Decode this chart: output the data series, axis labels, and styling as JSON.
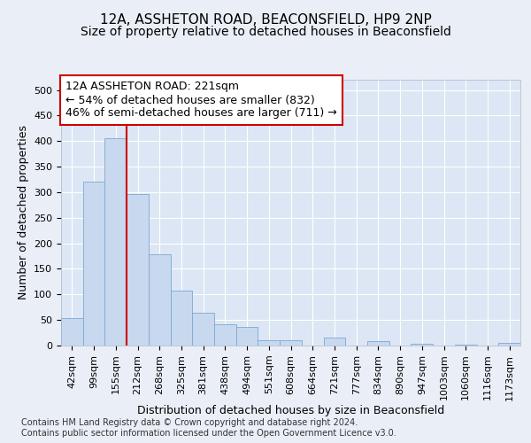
{
  "title1": "12A, ASSHETON ROAD, BEACONSFIELD, HP9 2NP",
  "title2": "Size of property relative to detached houses in Beaconsfield",
  "xlabel": "Distribution of detached houses by size in Beaconsfield",
  "ylabel": "Number of detached properties",
  "categories": [
    "42sqm",
    "99sqm",
    "155sqm",
    "212sqm",
    "268sqm",
    "325sqm",
    "381sqm",
    "438sqm",
    "494sqm",
    "551sqm",
    "608sqm",
    "664sqm",
    "721sqm",
    "777sqm",
    "834sqm",
    "890sqm",
    "947sqm",
    "1003sqm",
    "1060sqm",
    "1116sqm",
    "1173sqm"
  ],
  "values": [
    54,
    320,
    405,
    297,
    178,
    107,
    65,
    41,
    37,
    11,
    11,
    0,
    15,
    0,
    8,
    0,
    4,
    0,
    1,
    0,
    5
  ],
  "bar_color": "#c8d8ee",
  "bar_edge_color": "#7aaad0",
  "vline_idx": 3,
  "vline_color": "#cc0000",
  "annotation_text": "12A ASSHETON ROAD: 221sqm\n← 54% of detached houses are smaller (832)\n46% of semi-detached houses are larger (711) →",
  "annotation_box_color": "#ffffff",
  "annotation_box_edge": "#cc0000",
  "footer": "Contains HM Land Registry data © Crown copyright and database right 2024.\nContains public sector information licensed under the Open Government Licence v3.0.",
  "ylim": [
    0,
    520
  ],
  "bg_color": "#eaeff7",
  "plot_bg_color": "#dce6f4",
  "grid_color": "#ffffff",
  "title1_fontsize": 11,
  "title2_fontsize": 10,
  "ylabel_fontsize": 9,
  "xlabel_fontsize": 9,
  "tick_fontsize": 8,
  "footer_fontsize": 7,
  "ann_fontsize": 9
}
